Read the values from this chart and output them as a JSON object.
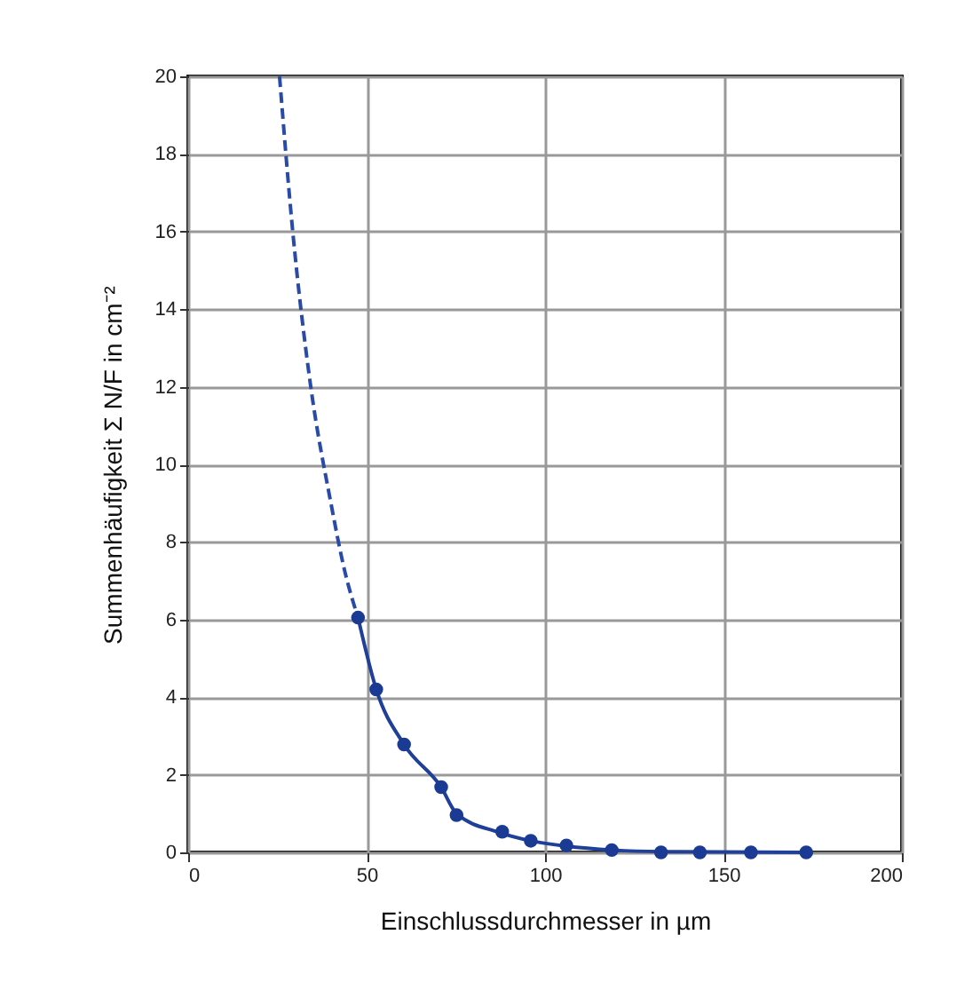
{
  "chart_data": {
    "type": "line",
    "xlabel": "Einschlussdurchmesser in µm",
    "ylabel": "Summenhäufigkeit  Σ N/F in cm⁻²",
    "xlim": [
      0,
      200
    ],
    "xticks": [
      0,
      50,
      100,
      150,
      200
    ],
    "ylim": [
      0,
      20
    ],
    "yticks": [
      0,
      2,
      4,
      6,
      8,
      10,
      12,
      14,
      16,
      18,
      20
    ],
    "grid": true,
    "series": [
      {
        "type": "line",
        "line_style": "dashed",
        "color": "#2a4aa8",
        "x": [
          25.6,
          29.3,
          34.2,
          40,
          44,
          47.6
        ],
        "values": [
          20,
          16,
          12.1,
          9,
          7.2,
          6.05
        ]
      },
      {
        "type": "line",
        "line_style": "solid",
        "color": "#1f3f99",
        "x": [
          47.6,
          52.7,
          60.5,
          70.9,
          75.2,
          87,
          96,
          106,
          119,
          133,
          175
        ],
        "values": [
          6.05,
          4.2,
          2.78,
          1.68,
          1.0,
          0.52,
          0.3,
          0.16,
          0.06,
          0.02,
          0
        ]
      },
      {
        "type": "scatter",
        "marker": "circle",
        "color": "#1a3a94",
        "x": [
          47.6,
          52.7,
          60.5,
          70.9,
          75.2,
          88,
          96,
          106,
          118.7,
          132.5,
          143.4,
          157.7,
          173.2
        ],
        "values": [
          6.05,
          4.2,
          2.78,
          1.68,
          0.96,
          0.53,
          0.3,
          0.18,
          0.06,
          0,
          0,
          0,
          0
        ]
      }
    ]
  }
}
